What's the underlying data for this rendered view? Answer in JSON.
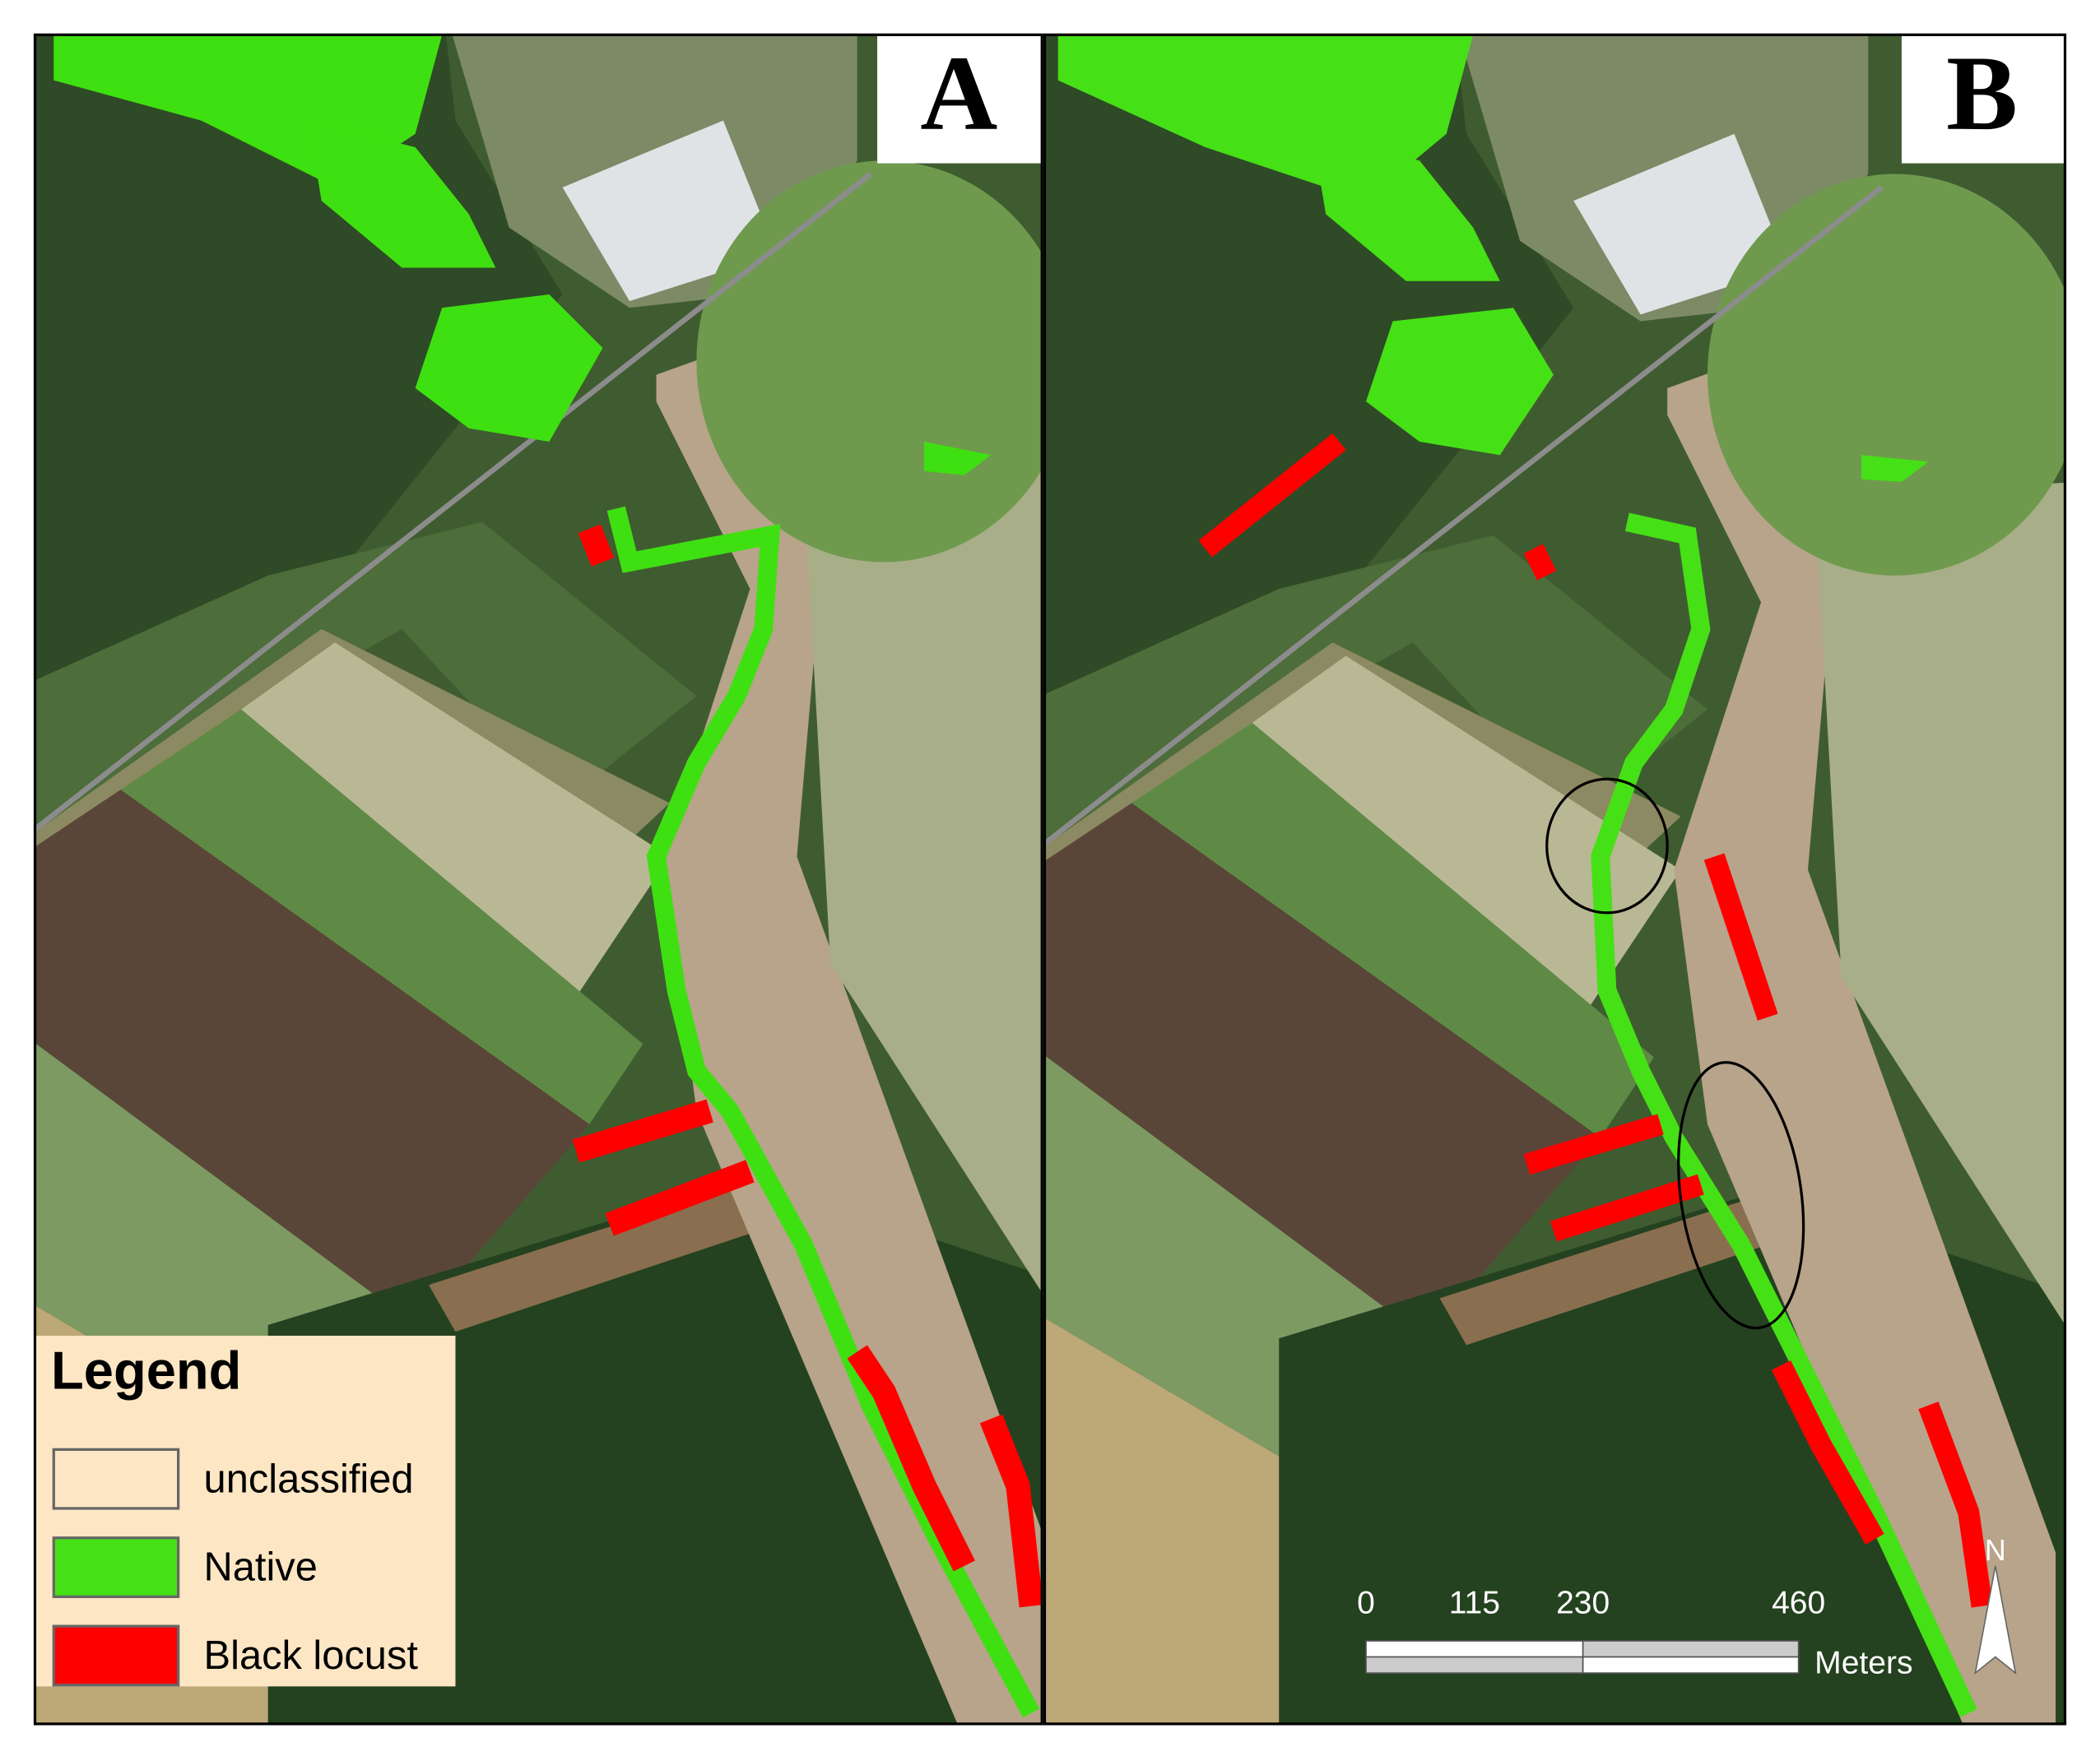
{
  "panels": [
    {
      "label": "A"
    },
    {
      "label": "B"
    }
  ],
  "legend": {
    "title": "Legend",
    "items": [
      {
        "label": "unclassified",
        "color": "#fde6c4"
      },
      {
        "label": "Native",
        "color": "#46e016"
      },
      {
        "label": "Black locust",
        "color": "#ff0000"
      }
    ]
  },
  "scale_bar": {
    "labels": [
      "0",
      "115",
      "230",
      "460"
    ],
    "unit": "Meters"
  },
  "north_arrow": {
    "label": "N"
  }
}
